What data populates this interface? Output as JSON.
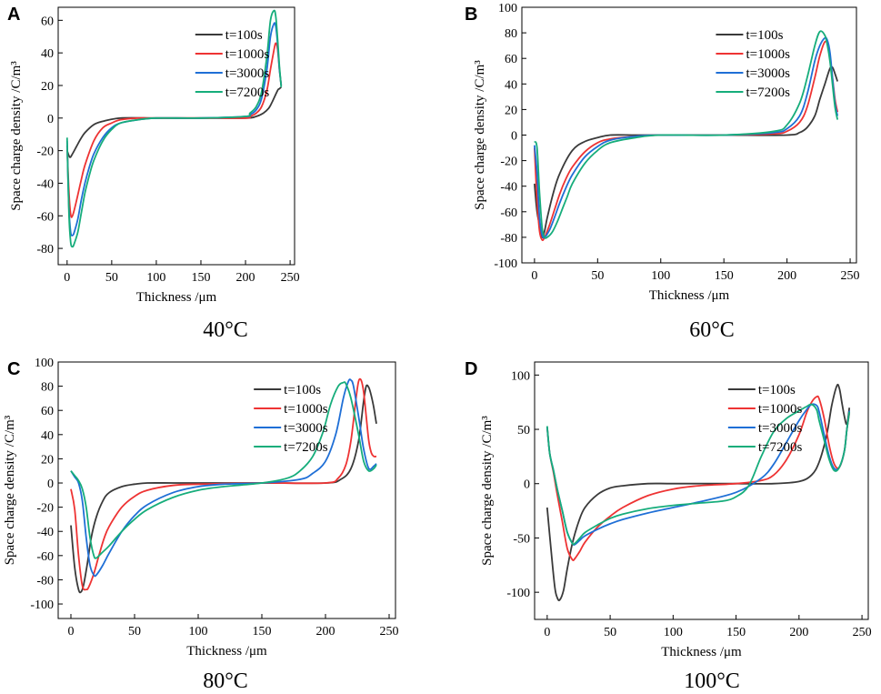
{
  "figure": {
    "width": 969,
    "height": 763
  },
  "colors": {
    "t100": "#3a3a3a",
    "t1000": "#ee3333",
    "t3000": "#1f6fd6",
    "t7200": "#16ad7b"
  },
  "chart_data": [
    {
      "panel": "A",
      "type": "line",
      "temperature": "40°C",
      "xlabel": "Thickness /μm",
      "ylabel": "Space charge density /C/m³",
      "xlim": [
        -10,
        255
      ],
      "ylim": [
        -90,
        68
      ],
      "xticks": [
        0,
        50,
        100,
        150,
        200,
        250
      ],
      "yticks": [
        -80,
        -60,
        -40,
        -20,
        0,
        20,
        40,
        60
      ],
      "legend": "top-right",
      "series": [
        {
          "name": "t=100s",
          "color_key": "t100",
          "x": [
            0,
            3,
            6,
            10,
            15,
            20,
            30,
            40,
            60,
            100,
            150,
            200,
            212,
            220,
            226,
            230,
            236,
            238,
            240
          ],
          "y": [
            -20,
            -24,
            -22,
            -18,
            -13,
            -9,
            -4,
            -2,
            0,
            0,
            0,
            0,
            1,
            3,
            6,
            10,
            17,
            18,
            19
          ]
        },
        {
          "name": "t=1000s",
          "color_key": "t1000",
          "x": [
            0,
            2,
            4,
            6,
            10,
            15,
            20,
            30,
            40,
            50,
            60,
            80,
            100,
            150,
            200,
            205,
            212,
            218,
            224,
            228,
            232,
            234,
            236,
            238,
            240
          ],
          "y": [
            -17,
            -45,
            -59,
            -60,
            -52,
            -40,
            -29,
            -14,
            -6,
            -3,
            -1,
            0,
            0,
            0,
            0,
            1,
            3,
            7,
            17,
            30,
            42,
            46,
            42,
            30,
            20
          ]
        },
        {
          "name": "t=3000s",
          "color_key": "t3000",
          "x": [
            0,
            2,
            4,
            6,
            8,
            12,
            16,
            20,
            25,
            30,
            40,
            50,
            60,
            80,
            100,
            150,
            200,
            205,
            212,
            218,
            224,
            228,
            232,
            234,
            236,
            238,
            240
          ],
          "y": [
            -14,
            -55,
            -70,
            -72,
            -70,
            -62,
            -50,
            -40,
            -30,
            -22,
            -12,
            -6,
            -3,
            -1,
            0,
            0,
            1,
            2,
            5,
            12,
            30,
            50,
            58,
            56,
            45,
            30,
            20
          ]
        },
        {
          "name": "t=7200s",
          "color_key": "t7200",
          "x": [
            0,
            2,
            4,
            6,
            8,
            12,
            16,
            20,
            25,
            30,
            40,
            50,
            60,
            80,
            100,
            150,
            200,
            205,
            212,
            218,
            224,
            228,
            232,
            234,
            236,
            238,
            240
          ],
          "y": [
            -12,
            -58,
            -76,
            -79,
            -77,
            -70,
            -58,
            -46,
            -35,
            -26,
            -14,
            -7,
            -3,
            -1,
            0,
            0,
            1,
            3,
            7,
            16,
            38,
            60,
            66,
            62,
            48,
            32,
            19
          ]
        }
      ]
    },
    {
      "panel": "B",
      "type": "line",
      "temperature": "60°C",
      "xlabel": "Thickness /μm",
      "ylabel": "Space charge density /C/m³",
      "xlim": [
        -10,
        255
      ],
      "ylim": [
        -100,
        100
      ],
      "xticks": [
        0,
        50,
        100,
        150,
        200,
        250
      ],
      "yticks": [
        -100,
        -80,
        -60,
        -40,
        -20,
        0,
        20,
        40,
        60,
        80,
        100
      ],
      "legend": "top-right",
      "series": [
        {
          "name": "t=100s",
          "color_key": "t100",
          "x": [
            0,
            2,
            4,
            6,
            8,
            10,
            15,
            20,
            30,
            40,
            50,
            60,
            80,
            100,
            150,
            200,
            210,
            216,
            222,
            226,
            230,
            234,
            236,
            238,
            240
          ],
          "y": [
            -38,
            -60,
            -70,
            -80,
            -75,
            -65,
            -45,
            -30,
            -12,
            -5,
            -2,
            0,
            0,
            0,
            0,
            0,
            2,
            6,
            15,
            28,
            40,
            52,
            53,
            48,
            42
          ]
        },
        {
          "name": "t=1000s",
          "color_key": "t1000",
          "x": [
            0,
            2,
            4,
            6,
            8,
            12,
            16,
            20,
            25,
            30,
            40,
            50,
            60,
            80,
            100,
            150,
            190,
            200,
            210,
            216,
            222,
            226,
            230,
            233,
            236,
            238,
            240
          ],
          "y": [
            -10,
            -50,
            -75,
            -82,
            -80,
            -70,
            -58,
            -46,
            -34,
            -25,
            -13,
            -6,
            -3,
            -1,
            0,
            0,
            1,
            3,
            10,
            22,
            45,
            62,
            73,
            68,
            45,
            28,
            18
          ]
        },
        {
          "name": "t=3000s",
          "color_key": "t3000",
          "x": [
            0,
            2,
            4,
            6,
            8,
            12,
            16,
            20,
            25,
            30,
            40,
            50,
            60,
            80,
            100,
            150,
            190,
            200,
            210,
            216,
            222,
            226,
            230,
            232,
            234,
            236,
            238,
            240
          ],
          "y": [
            -8,
            -30,
            -65,
            -78,
            -80,
            -74,
            -64,
            -53,
            -41,
            -31,
            -17,
            -9,
            -4,
            -1,
            0,
            0,
            2,
            5,
            15,
            32,
            58,
            70,
            76,
            74,
            65,
            45,
            25,
            15
          ]
        },
        {
          "name": "t=7200s",
          "color_key": "t7200",
          "x": [
            0,
            2,
            4,
            6,
            8,
            10,
            14,
            18,
            22,
            26,
            30,
            40,
            50,
            60,
            80,
            100,
            150,
            190,
            200,
            210,
            216,
            222,
            226,
            230,
            232,
            234,
            236,
            238,
            240
          ],
          "y": [
            -5,
            -10,
            -45,
            -72,
            -80,
            -80,
            -76,
            -68,
            -58,
            -48,
            -38,
            -22,
            -12,
            -6,
            -2,
            0,
            0,
            3,
            8,
            25,
            45,
            70,
            81,
            78,
            70,
            58,
            40,
            22,
            12
          ]
        }
      ]
    },
    {
      "panel": "C",
      "type": "line",
      "temperature": "80°C",
      "xlabel": "Thickness /μm",
      "ylabel": "Space charge density /C/m³",
      "xlim": [
        -10,
        255
      ],
      "ylim": [
        -112,
        100
      ],
      "xticks": [
        0,
        50,
        100,
        150,
        200,
        250
      ],
      "yticks": [
        -100,
        -80,
        -60,
        -40,
        -20,
        0,
        20,
        40,
        60,
        80,
        100
      ],
      "legend": "top-right",
      "series": [
        {
          "name": "t=100s",
          "color_key": "t100",
          "x": [
            0,
            3,
            6,
            8,
            10,
            13,
            16,
            20,
            25,
            30,
            40,
            50,
            60,
            80,
            100,
            150,
            200,
            212,
            220,
            226,
            230,
            232,
            234,
            236,
            238,
            240
          ],
          "y": [
            -35,
            -70,
            -88,
            -90,
            -84,
            -66,
            -45,
            -28,
            -15,
            -8,
            -3,
            -1,
            0,
            0,
            0,
            0,
            0,
            3,
            12,
            35,
            68,
            80,
            79,
            72,
            62,
            49
          ]
        },
        {
          "name": "t=1000s",
          "color_key": "t1000",
          "x": [
            0,
            3,
            6,
            9,
            12,
            14,
            18,
            22,
            26,
            30,
            40,
            50,
            60,
            80,
            100,
            150,
            200,
            210,
            216,
            220,
            224,
            226,
            228,
            230,
            232,
            234,
            236,
            238,
            240
          ],
          "y": [
            -5,
            -22,
            -60,
            -85,
            -88,
            -86,
            -75,
            -60,
            -46,
            -36,
            -20,
            -11,
            -6,
            -2,
            -1,
            0,
            0,
            4,
            15,
            35,
            70,
            84,
            85,
            75,
            55,
            35,
            25,
            22,
            22
          ]
        },
        {
          "name": "t=3000s",
          "color_key": "t3000",
          "x": [
            0,
            3,
            6,
            9,
            12,
            15,
            18,
            20,
            25,
            30,
            40,
            50,
            60,
            80,
            100,
            120,
            150,
            180,
            190,
            200,
            208,
            214,
            218,
            220,
            222,
            226,
            230,
            234,
            238,
            240
          ],
          "y": [
            10,
            5,
            0,
            -15,
            -45,
            -68,
            -76,
            -76,
            -68,
            -58,
            -40,
            -27,
            -18,
            -8,
            -3,
            -1,
            0,
            3,
            8,
            18,
            40,
            70,
            84,
            85,
            80,
            55,
            28,
            12,
            14,
            16
          ]
        },
        {
          "name": "t=7200s",
          "color_key": "t7200",
          "x": [
            0,
            3,
            6,
            9,
            12,
            15,
            18,
            20,
            24,
            30,
            40,
            50,
            60,
            80,
            100,
            120,
            150,
            170,
            180,
            190,
            198,
            204,
            210,
            214,
            216,
            220,
            226,
            230,
            234,
            238,
            240
          ],
          "y": [
            10,
            6,
            2,
            -5,
            -20,
            -45,
            -60,
            -62,
            -58,
            -52,
            -40,
            -30,
            -22,
            -12,
            -6,
            -3,
            0,
            4,
            10,
            22,
            42,
            65,
            80,
            83,
            82,
            70,
            40,
            18,
            10,
            12,
            15
          ]
        }
      ]
    },
    {
      "panel": "D",
      "type": "line",
      "temperature": "100°C",
      "xlabel": "Thickness /μm",
      "ylabel": "Space charge density /C/m³",
      "xlim": [
        -10,
        255
      ],
      "ylim": [
        -125,
        112
      ],
      "xticks": [
        0,
        50,
        100,
        150,
        200,
        250
      ],
      "yticks": [
        -100,
        -50,
        0,
        50,
        100
      ],
      "legend": "top-right",
      "series": [
        {
          "name": "t=100s",
          "color_key": "t100",
          "x": [
            0,
            3,
            6,
            8,
            10,
            13,
            16,
            20,
            25,
            30,
            40,
            50,
            60,
            80,
            100,
            150,
            180,
            200,
            210,
            216,
            222,
            226,
            230,
            232,
            234,
            236,
            238,
            240
          ],
          "y": [
            -22,
            -60,
            -95,
            -105,
            -107,
            -98,
            -78,
            -55,
            -35,
            -22,
            -10,
            -4,
            -2,
            0,
            0,
            0,
            0,
            2,
            8,
            20,
            45,
            72,
            90,
            88,
            75,
            62,
            55,
            70
          ]
        },
        {
          "name": "t=1000s",
          "color_key": "t1000",
          "x": [
            0,
            2,
            5,
            8,
            12,
            16,
            20,
            22,
            26,
            30,
            40,
            50,
            60,
            80,
            100,
            120,
            150,
            170,
            180,
            190,
            200,
            206,
            210,
            214,
            216,
            220,
            224,
            228,
            232,
            236,
            238,
            240
          ],
          "y": [
            52,
            28,
            10,
            -10,
            -35,
            -60,
            -70,
            -69,
            -62,
            -54,
            -40,
            -30,
            -22,
            -11,
            -5,
            -2,
            0,
            3,
            8,
            22,
            45,
            65,
            75,
            80,
            78,
            60,
            35,
            18,
            15,
            30,
            50,
            65
          ]
        },
        {
          "name": "t=3000s",
          "color_key": "t3000",
          "x": [
            0,
            2,
            5,
            8,
            12,
            16,
            20,
            22,
            26,
            30,
            40,
            50,
            60,
            80,
            100,
            120,
            150,
            170,
            180,
            190,
            200,
            206,
            210,
            214,
            216,
            220,
            224,
            228,
            232,
            236,
            238,
            240
          ],
          "y": [
            52,
            28,
            12,
            -5,
            -25,
            -45,
            -55,
            -56,
            -52,
            -48,
            -42,
            -37,
            -33,
            -27,
            -22,
            -17,
            -8,
            5,
            18,
            38,
            58,
            68,
            73,
            72,
            66,
            45,
            25,
            14,
            15,
            30,
            50,
            67
          ]
        },
        {
          "name": "t=7200s",
          "color_key": "t7200",
          "x": [
            0,
            2,
            5,
            8,
            12,
            16,
            20,
            22,
            26,
            30,
            40,
            50,
            60,
            80,
            100,
            120,
            140,
            150,
            160,
            170,
            180,
            190,
            200,
            206,
            210,
            214,
            216,
            220,
            224,
            228,
            232,
            236,
            238,
            240
          ],
          "y": [
            53,
            28,
            12,
            -5,
            -25,
            -45,
            -55,
            -55,
            -50,
            -45,
            -38,
            -32,
            -28,
            -23,
            -20,
            -18,
            -16,
            -12,
            -2,
            25,
            48,
            60,
            67,
            71,
            73,
            68,
            58,
            40,
            22,
            12,
            15,
            30,
            50,
            66
          ]
        }
      ]
    }
  ]
}
